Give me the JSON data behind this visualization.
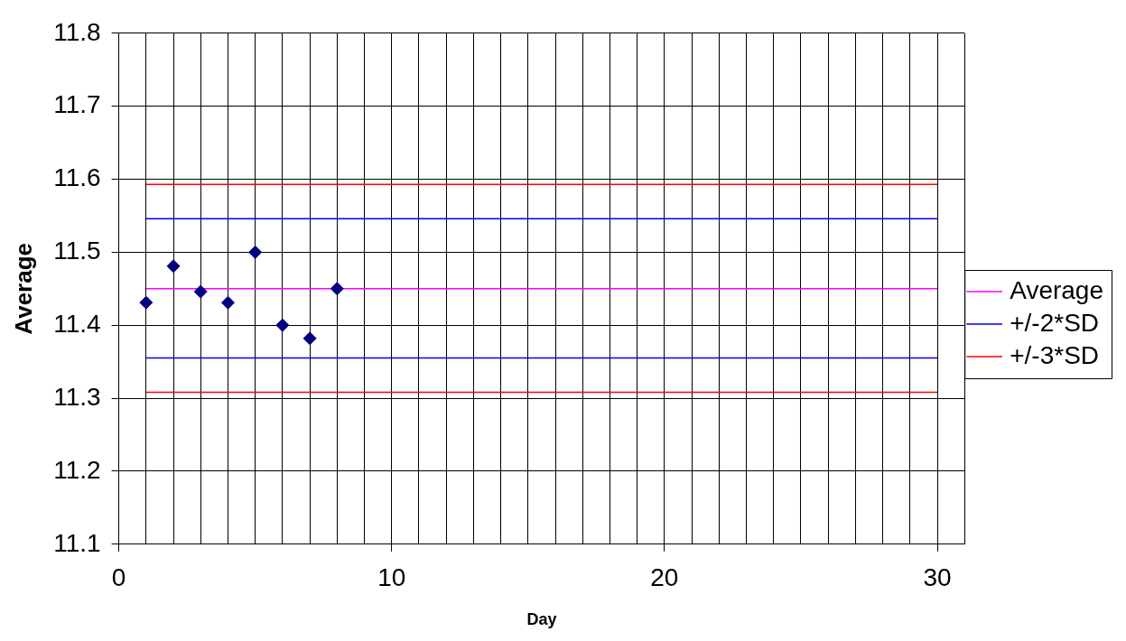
{
  "chart_data": {
    "type": "scatter",
    "xlabel": "Day",
    "ylabel": "Average",
    "xlim": [
      0,
      31
    ],
    "xticks": [
      0,
      10,
      20,
      30
    ],
    "ylim": [
      11.1,
      11.8
    ],
    "yticks": [
      11.1,
      11.2,
      11.3,
      11.4,
      11.5,
      11.6,
      11.7,
      11.8
    ],
    "grid": true,
    "legend": "right",
    "marker": "diamond",
    "series": [
      {
        "color": "#000080",
        "x": [
          1,
          2,
          3,
          4,
          5,
          6,
          7,
          8
        ],
        "values": [
          11.431,
          11.481,
          11.446,
          11.431,
          11.5,
          11.4,
          11.382,
          11.45
        ]
      },
      {
        "type": "line",
        "name": "Average",
        "color": "#ff00ff",
        "marker": "none",
        "x": [
          1,
          30
        ],
        "values": [
          11.45,
          11.45
        ]
      },
      {
        "type": "line",
        "name": "+/-2*SD",
        "color": "#0000ff",
        "marker": "none",
        "x": [
          1,
          30
        ],
        "values": [
          11.546,
          11.546
        ]
      },
      {
        "type": "line",
        "name": "+/-3*SD",
        "color": "#ff0000",
        "marker": "none",
        "x": [
          1,
          30
        ],
        "values": [
          11.593,
          11.593
        ]
      },
      {
        "type": "line",
        "color": "#0000ff",
        "marker": "none",
        "x": [
          1,
          30
        ],
        "values": [
          11.355,
          11.355
        ]
      },
      {
        "type": "line",
        "color": "#ff0000",
        "marker": "none",
        "x": [
          1,
          30
        ],
        "values": [
          11.308,
          11.308
        ]
      }
    ]
  }
}
